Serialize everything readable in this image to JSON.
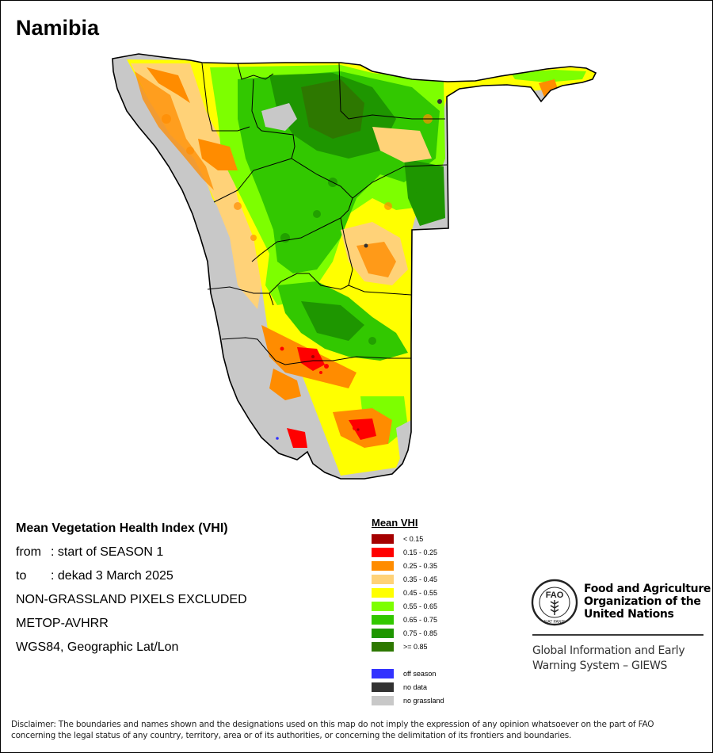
{
  "map": {
    "title": "Namibia"
  },
  "info": {
    "title": "Mean Vegetation Health Index (VHI)",
    "from_label": "from",
    "from_value": ": start of SEASON 1",
    "to_label": "to",
    "to_value": ": dekad 3 March 2025",
    "note": "NON-GRASSLAND PIXELS EXCLUDED",
    "sensor": "METOP-AVHRR",
    "projection": "WGS84, Geographic Lat/Lon"
  },
  "legend": {
    "title": "Mean VHI",
    "classes": [
      {
        "label": "< 0.15",
        "color": "#a50000"
      },
      {
        "label": "0.15 - 0.25",
        "color": "#ff0000"
      },
      {
        "label": "0.25 - 0.35",
        "color": "#ff8c00"
      },
      {
        "label": "0.35 - 0.45",
        "color": "#ffd278"
      },
      {
        "label": "0.45 - 0.55",
        "color": "#ffff00"
      },
      {
        "label": "0.55 - 0.65",
        "color": "#7dff00"
      },
      {
        "label": "0.65 - 0.75",
        "color": "#32c800"
      },
      {
        "label": ">= 0.85",
        "color": "#2d7800"
      }
    ],
    "extra_class": {
      "label": "0.75 - 0.85",
      "color": "#1e9600"
    },
    "special": [
      {
        "label": "off season",
        "color": "#3232ff"
      },
      {
        "label": "no data",
        "color": "#323232"
      },
      {
        "label": "no grassland",
        "color": "#c8c8c8"
      }
    ]
  },
  "fao": {
    "name_line1": "Food and Agriculture",
    "name_line2": "Organization of the",
    "name_line3": "United Nations",
    "giews_line1": "Global Information and Early",
    "giews_line2": "Warning System – GIEWS",
    "emblem_text": "FAO",
    "motto": "FIAT PANIS"
  },
  "disclaimer": {
    "line1": "Disclaimer: The boundaries and names shown and the designations used on this map do not imply the expression of any opinion whatsoever on the part of FAO",
    "line2": "concerning the legal status of any country, territory, area or of its authorities, or concerning the delimitation of its frontiers and boundaries."
  }
}
